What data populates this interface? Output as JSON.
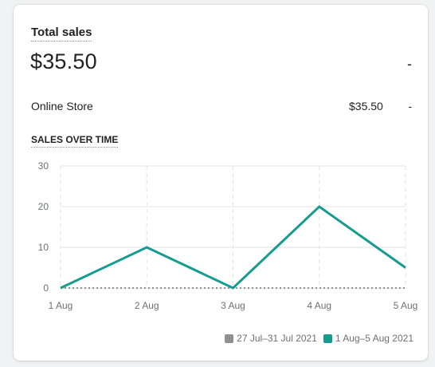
{
  "card": {
    "title": "Total sales",
    "total_value": "$35.50",
    "total_change": "-",
    "rows": [
      {
        "label": "Online Store",
        "value": "$35.50",
        "change": "-"
      }
    ],
    "section_heading": "SALES OVER TIME"
  },
  "colors": {
    "current": "#169c8f",
    "previous": "#8c9196",
    "grid": "#e1e3e5",
    "axis_text": "#6d7175"
  },
  "chart_data": {
    "type": "line",
    "categories": [
      "1 Aug",
      "2 Aug",
      "3 Aug",
      "4 Aug",
      "5 Aug"
    ],
    "series": [
      {
        "name": "1 Aug–5 Aug 2021",
        "values": [
          0,
          10,
          0,
          20,
          5
        ]
      },
      {
        "name": "27 Jul–31 Jul 2021",
        "values": [
          0,
          0,
          0,
          0,
          0
        ]
      }
    ],
    "ylim": [
      0,
      30
    ],
    "yticks": [
      "0",
      "10",
      "20",
      "30"
    ],
    "grid": true,
    "legend": [
      "27 Jul–31 Jul 2021",
      "1 Aug–5 Aug 2021"
    ],
    "legend_position": "bottom-right"
  }
}
